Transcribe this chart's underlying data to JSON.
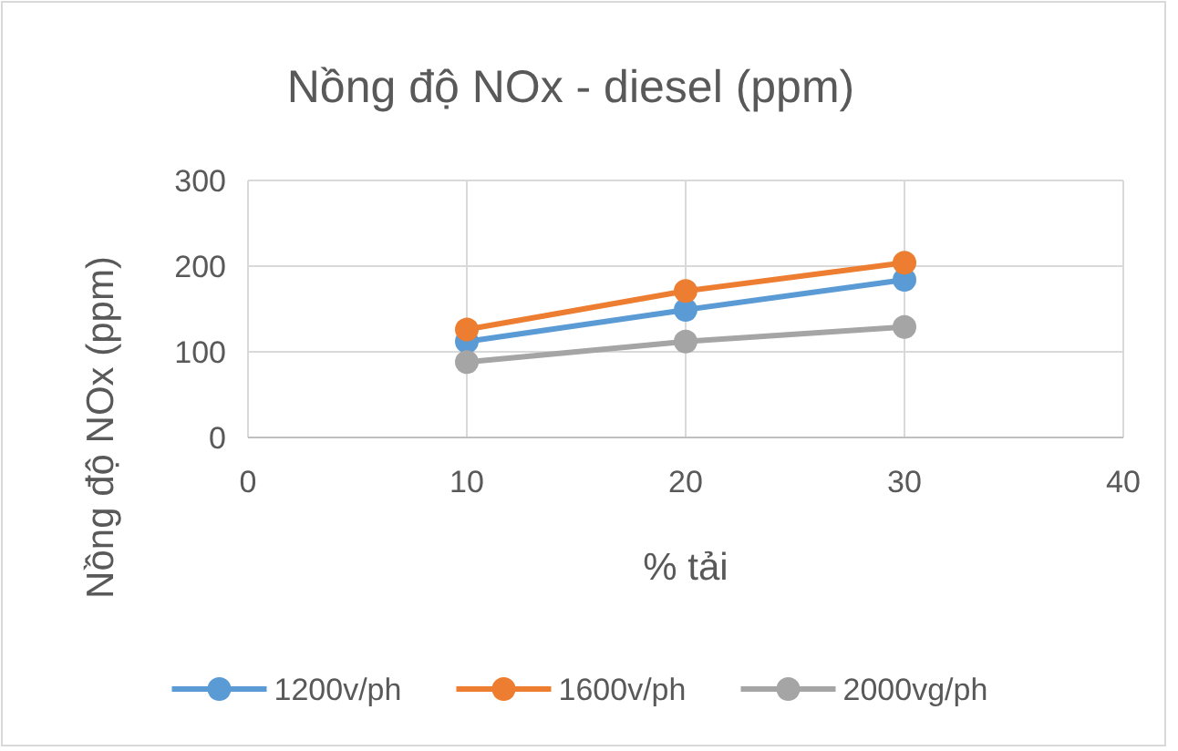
{
  "chart_data": {
    "type": "line",
    "title": "Nồng độ NOx - diesel (ppm)",
    "xlabel": "% tải",
    "ylabel": "Nồng độ NOx (ppm)",
    "x": [
      10,
      20,
      30
    ],
    "series": [
      {
        "name": "1200v/ph",
        "color": "#5b9bd5",
        "values": [
          112,
          149,
          184
        ]
      },
      {
        "name": "1600v/ph",
        "color": "#ed7d31",
        "values": [
          126,
          171,
          204
        ]
      },
      {
        "name": "2000vg/ph",
        "color": "#a5a5a5",
        "values": [
          88,
          112,
          129
        ]
      }
    ],
    "xlim": [
      0,
      40
    ],
    "xticks": [
      0,
      10,
      20,
      30,
      40
    ],
    "ylim": [
      0,
      300
    ],
    "yticks": [
      0,
      100,
      200,
      300
    ],
    "grid": true,
    "legend": "bottom",
    "marker": "circle",
    "line_style": "solid"
  }
}
